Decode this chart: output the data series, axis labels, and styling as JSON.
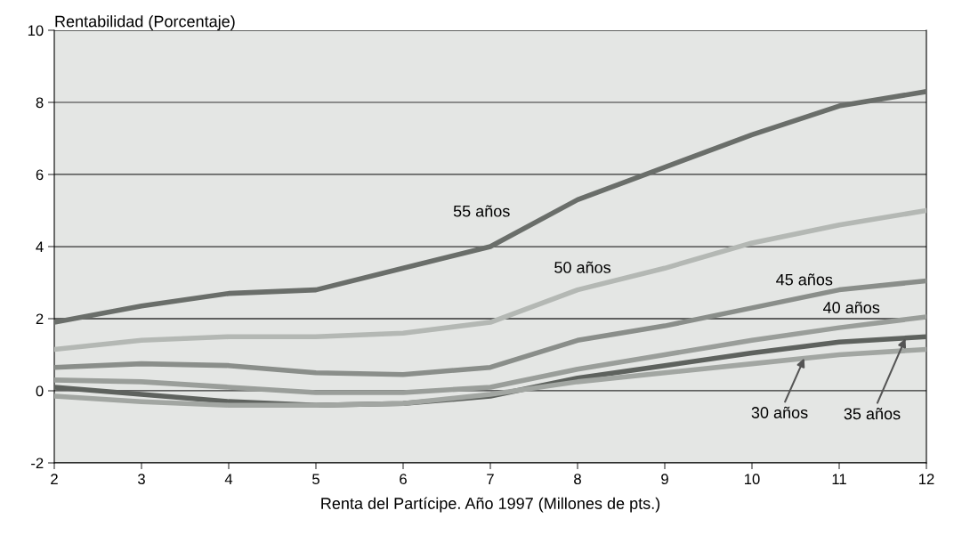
{
  "chart_data": {
    "type": "line",
    "xlabel": "Renta del Partícipe. Año 1997 (Millones de pts.)",
    "ylabel": "Rentabilidad (Porcentaje)",
    "x": [
      2,
      3,
      4,
      5,
      6,
      7,
      8,
      9,
      10,
      11,
      12
    ],
    "series": [
      {
        "color": "#6a6e6a",
        "values": [
          1.9,
          2.35,
          2.7,
          2.8,
          3.4,
          4.0,
          5.3,
          6.2,
          7.1,
          7.9,
          8.3
        ]
      },
      {
        "color": "#b4b8b4",
        "values": [
          1.15,
          1.4,
          1.5,
          1.5,
          1.6,
          1.9,
          2.8,
          3.4,
          4.1,
          4.6,
          5.0
        ]
      },
      {
        "color": "#8a8e8a",
        "values": [
          0.65,
          0.75,
          0.7,
          0.5,
          0.45,
          0.65,
          1.4,
          1.8,
          2.3,
          2.8,
          3.05
        ]
      },
      {
        "color": "#9a9e9a",
        "values": [
          0.3,
          0.25,
          0.1,
          -0.05,
          -0.05,
          0.1,
          0.6,
          1.0,
          1.4,
          1.75,
          2.05
        ]
      },
      {
        "color": "#5e625e",
        "values": [
          0.1,
          -0.1,
          -0.3,
          -0.4,
          -0.35,
          -0.15,
          0.35,
          0.7,
          1.05,
          1.35,
          1.5
        ]
      },
      {
        "color": "#a2a6a2",
        "values": [
          -0.15,
          -0.3,
          -0.4,
          -0.4,
          -0.35,
          -0.1,
          0.25,
          0.5,
          0.75,
          1.0,
          1.15
        ]
      }
    ],
    "annotations": [
      {
        "text": "55 años",
        "x": 6.9,
        "y": 3.95
      },
      {
        "text": "50 años",
        "x": 8,
        "y": 2.8
      },
      {
        "text": "45 años",
        "x": 10.6,
        "y": 2.6
      },
      {
        "text": "40 años",
        "x": 11.14,
        "y": 1.79
      },
      {
        "text": "30 años",
        "x": 10.6,
        "y": 0.9
      },
      {
        "text": "35 años",
        "x": 11.76,
        "y": 1.45
      }
    ],
    "xlim": [
      2,
      12
    ],
    "ylim": [
      -2,
      10
    ],
    "xticks": [
      2,
      3,
      4,
      5,
      6,
      7,
      8,
      9,
      10,
      11,
      12
    ],
    "yticks": [
      -2,
      0,
      2,
      4,
      6,
      8,
      10
    ],
    "grid": "y",
    "legend": false,
    "marker": "none",
    "line_style": "solid"
  }
}
